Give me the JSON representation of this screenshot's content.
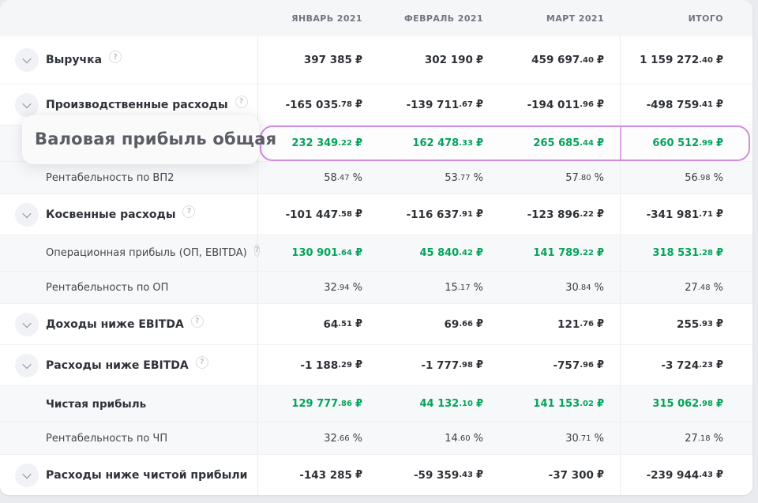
{
  "table": {
    "columns": [
      "ЯНВАРЬ 2021",
      "ФЕВРАЛЬ 2021",
      "МАРТ 2021",
      "ИТОГО"
    ],
    "rows": [
      {
        "label": "Выручка",
        "kind": "main",
        "chevron": true,
        "help": true,
        "green": false,
        "unit": "₽",
        "values": [
          {
            "int": "397 385",
            "dec": ""
          },
          {
            "int": "302 190",
            "dec": ""
          },
          {
            "int": "459 697",
            "dec": ".40"
          },
          {
            "int": "1 159 272",
            "dec": ".40"
          }
        ]
      },
      {
        "label": "Производственные расходы",
        "kind": "main",
        "chevron": true,
        "help": true,
        "green": false,
        "unit": "₽",
        "values": [
          {
            "int": "-165 035",
            "dec": ".78"
          },
          {
            "int": "-139 711",
            "dec": ".67"
          },
          {
            "int": "-194 011",
            "dec": ".96"
          },
          {
            "int": "-498 759",
            "dec": ".41"
          }
        ]
      },
      {
        "label": "Валовая прибыль общая",
        "kind": "sub",
        "chevron": false,
        "help": false,
        "green": true,
        "highlight": true,
        "magnified": true,
        "unit": "₽",
        "values": [
          {
            "int": "232 349",
            "dec": ".22"
          },
          {
            "int": "162 478",
            "dec": ".33"
          },
          {
            "int": "265 685",
            "dec": ".44"
          },
          {
            "int": "660 512",
            "dec": ".99"
          }
        ]
      },
      {
        "label": "Рентабельность по ВП2",
        "kind": "pct",
        "chevron": false,
        "help": false,
        "green": false,
        "unit": "%",
        "values": [
          {
            "int": "58",
            "dec": ".47"
          },
          {
            "int": "53",
            "dec": ".77"
          },
          {
            "int": "57",
            "dec": ".80"
          },
          {
            "int": "56",
            "dec": ".98"
          }
        ]
      },
      {
        "label": "Косвенные расходы",
        "kind": "main",
        "chevron": true,
        "help": true,
        "green": false,
        "unit": "₽",
        "values": [
          {
            "int": "-101 447",
            "dec": ".58"
          },
          {
            "int": "-116 637",
            "dec": ".91"
          },
          {
            "int": "-123 896",
            "dec": ".22"
          },
          {
            "int": "-341 981",
            "dec": ".71"
          }
        ]
      },
      {
        "label": "Операционная прибыль (ОП, EBITDA)",
        "kind": "sub",
        "chevron": false,
        "help": true,
        "green": true,
        "unit": "₽",
        "values": [
          {
            "int": "130 901",
            "dec": ".64"
          },
          {
            "int": "45 840",
            "dec": ".42"
          },
          {
            "int": "141 789",
            "dec": ".22"
          },
          {
            "int": "318 531",
            "dec": ".28"
          }
        ]
      },
      {
        "label": "Рентабельность по ОП",
        "kind": "pct",
        "chevron": false,
        "help": false,
        "green": false,
        "unit": "%",
        "values": [
          {
            "int": "32",
            "dec": ".94"
          },
          {
            "int": "15",
            "dec": ".17"
          },
          {
            "int": "30",
            "dec": ".84"
          },
          {
            "int": "27",
            "dec": ".48"
          }
        ]
      },
      {
        "label": "Доходы ниже EBITDA",
        "kind": "main",
        "chevron": true,
        "help": true,
        "green": false,
        "unit": "₽",
        "values": [
          {
            "int": "64",
            "dec": ".51"
          },
          {
            "int": "69",
            "dec": ".66"
          },
          {
            "int": "121",
            "dec": ".76"
          },
          {
            "int": "255",
            "dec": ".93"
          }
        ]
      },
      {
        "label": "Расходы ниже EBITDA",
        "kind": "main",
        "chevron": true,
        "help": true,
        "green": false,
        "unit": "₽",
        "values": [
          {
            "int": "-1 188",
            "dec": ".29"
          },
          {
            "int": "-1 777",
            "dec": ".98"
          },
          {
            "int": "-757",
            "dec": ".96"
          },
          {
            "int": "-3 724",
            "dec": ".23"
          }
        ]
      },
      {
        "label": "Чистая прибыль",
        "kind": "sub",
        "chevron": false,
        "help": false,
        "green": true,
        "strong": true,
        "unit": "₽",
        "values": [
          {
            "int": "129 777",
            "dec": ".86"
          },
          {
            "int": "44 132",
            "dec": ".10"
          },
          {
            "int": "141 153",
            "dec": ".02"
          },
          {
            "int": "315 062",
            "dec": ".98"
          }
        ]
      },
      {
        "label": "Рентабельность по ЧП",
        "kind": "pct",
        "chevron": false,
        "help": false,
        "green": false,
        "unit": "%",
        "values": [
          {
            "int": "32",
            "dec": ".66"
          },
          {
            "int": "14",
            "dec": ".60"
          },
          {
            "int": "30",
            "dec": ".71"
          },
          {
            "int": "27",
            "dec": ".18"
          }
        ]
      },
      {
        "label": "Расходы ниже чистой прибыли",
        "kind": "main",
        "chevron": true,
        "help": false,
        "green": false,
        "unit": "₽",
        "values": [
          {
            "int": "-143 285",
            "dec": ""
          },
          {
            "int": "-59 359",
            "dec": ".43"
          },
          {
            "int": "-37 300",
            "dec": ""
          },
          {
            "int": "-239 944",
            "dec": ".43"
          }
        ]
      }
    ]
  },
  "overlay": {
    "magnified_label": "Валовая прибыль общая"
  },
  "icons": {
    "help_glyph": "?",
    "chevron": "chevron-down"
  },
  "colors": {
    "positive_green": "#04a35c",
    "highlight_border": "#cf8fdd",
    "header_bg": "#f5f6f8",
    "subrow_bg": "#f7f8fa",
    "page_bg": "#e9ebef",
    "text_dark": "#2e3136"
  }
}
